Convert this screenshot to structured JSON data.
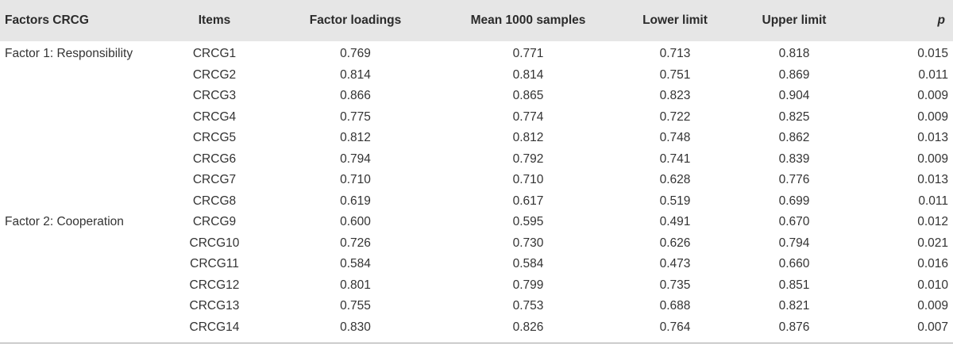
{
  "table": {
    "headers": {
      "factor": "Factors CRCG",
      "item": "Items",
      "loading": "Factor loadings",
      "mean": "Mean 1000 samples",
      "lower": "Lower limit",
      "upper": "Upper limit",
      "p": "p"
    },
    "rows": [
      {
        "factor": "Factor 1: Responsibility",
        "item": "CRCG1",
        "loading": "0.769",
        "mean": "0.771",
        "lower": "0.713",
        "upper": "0.818",
        "p": "0.015"
      },
      {
        "factor": "",
        "item": "CRCG2",
        "loading": "0.814",
        "mean": "0.814",
        "lower": "0.751",
        "upper": "0.869",
        "p": "0.011"
      },
      {
        "factor": "",
        "item": "CRCG3",
        "loading": "0.866",
        "mean": "0.865",
        "lower": "0.823",
        "upper": "0.904",
        "p": "0.009"
      },
      {
        "factor": "",
        "item": "CRCG4",
        "loading": "0.775",
        "mean": "0.774",
        "lower": "0.722",
        "upper": "0.825",
        "p": "0.009"
      },
      {
        "factor": "",
        "item": "CRCG5",
        "loading": "0.812",
        "mean": "0.812",
        "lower": "0.748",
        "upper": "0.862",
        "p": "0.013"
      },
      {
        "factor": "",
        "item": "CRCG6",
        "loading": "0.794",
        "mean": "0.792",
        "lower": "0.741",
        "upper": "0.839",
        "p": "0.009"
      },
      {
        "factor": "",
        "item": "CRCG7",
        "loading": "0.710",
        "mean": "0.710",
        "lower": "0.628",
        "upper": "0.776",
        "p": "0.013"
      },
      {
        "factor": "",
        "item": "CRCG8",
        "loading": "0.619",
        "mean": "0.617",
        "lower": "0.519",
        "upper": "0.699",
        "p": "0.011"
      },
      {
        "factor": "Factor 2: Cooperation",
        "item": "CRCG9",
        "loading": "0.600",
        "mean": "0.595",
        "lower": "0.491",
        "upper": "0.670",
        "p": "0.012"
      },
      {
        "factor": "",
        "item": "CRCG10",
        "loading": "0.726",
        "mean": "0.730",
        "lower": "0.626",
        "upper": "0.794",
        "p": "0.021"
      },
      {
        "factor": "",
        "item": "CRCG11",
        "loading": "0.584",
        "mean": "0.584",
        "lower": "0.473",
        "upper": "0.660",
        "p": "0.016"
      },
      {
        "factor": "",
        "item": "CRCG12",
        "loading": "0.801",
        "mean": "0.799",
        "lower": "0.735",
        "upper": "0.851",
        "p": "0.010"
      },
      {
        "factor": "",
        "item": "CRCG13",
        "loading": "0.755",
        "mean": "0.753",
        "lower": "0.688",
        "upper": "0.821",
        "p": "0.009"
      },
      {
        "factor": "",
        "item": "CRCG14",
        "loading": "0.830",
        "mean": "0.826",
        "lower": "0.764",
        "upper": "0.876",
        "p": "0.007"
      }
    ]
  }
}
